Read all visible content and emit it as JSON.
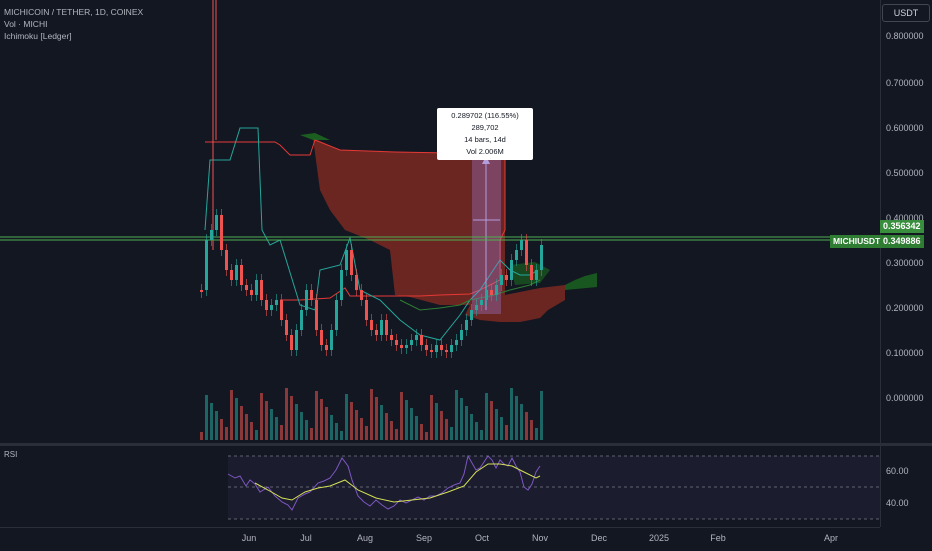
{
  "legend": {
    "symbol": "MICHICOIN / TETHER, 1D, COINEX",
    "volume": "Vol · MICHI",
    "ichimoku": "Ichimoku [Ledger]"
  },
  "currency_button": "USDT",
  "price_axis": [
    "0.800000",
    "0.700000",
    "0.600000",
    "0.500000",
    "0.400000",
    "0.300000",
    "0.200000",
    "0.100000",
    "0.000000"
  ],
  "time_axis": [
    "Jun",
    "Jul",
    "Aug",
    "Sep",
    "Oct",
    "Nov",
    "Dec",
    "2025",
    "Feb",
    "Apr"
  ],
  "price_labels": {
    "high": "0.356342",
    "last": "0.349886",
    "symbol_tag": "MICHIUSDT"
  },
  "measure_tooltip": {
    "line1": "0.289702 (116.55%) 289,702",
    "line2": "14 bars, 14d",
    "line3": "Vol 2.006M"
  },
  "rsi": {
    "label": "RSI",
    "levels": [
      "60.00",
      "40.00"
    ]
  },
  "colors": {
    "background": "#131722",
    "up": "#26a69a",
    "down": "#ef5350",
    "cloud_bear": "#8b2c23",
    "cloud_bull": "#1b5e20",
    "rsi_line": "#7e57c2",
    "rsi_ma": "#d4e157",
    "price_line": "#4caf50",
    "measure": "#9c7dd6"
  }
}
